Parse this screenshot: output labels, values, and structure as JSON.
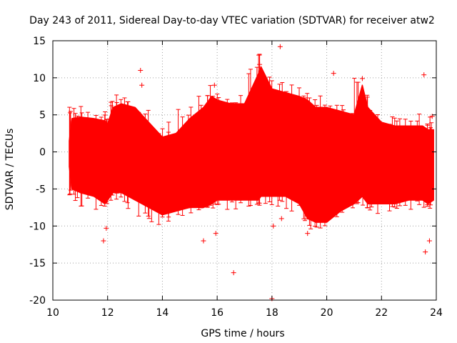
{
  "chart_data": {
    "type": "scatter",
    "title": "Day 243 of 2011, Sidereal Day-to-day VTEC variation (SDTVAR) for receiver atw2",
    "xlabel": "GPS time / hours",
    "ylabel": "SDTVAR / TECUs",
    "xlim": [
      10,
      24
    ],
    "ylim": [
      -20,
      15
    ],
    "xticks": [
      10,
      12,
      14,
      16,
      18,
      20,
      22,
      24
    ],
    "yticks": [
      -20,
      -15,
      -10,
      -5,
      0,
      5,
      10,
      15
    ],
    "grid": true,
    "color": "#ff0000",
    "series": [
      {
        "name": "SDTVAR",
        "marker": "+",
        "data_range_hours": [
          10.6,
          23.9
        ],
        "envelope": {
          "x": [
            10.6,
            10.7,
            11.0,
            11.5,
            11.9,
            12.0,
            12.2,
            12.5,
            13.0,
            13.5,
            14.0,
            14.5,
            15.0,
            15.5,
            15.8,
            16.0,
            16.5,
            17.0,
            17.5,
            17.6,
            18.0,
            18.5,
            19.0,
            19.3,
            19.6,
            20.0,
            20.5,
            21.0,
            21.3,
            21.5,
            22.0,
            22.5,
            23.0,
            23.5,
            23.7,
            23.9
          ],
          "upper": [
            1.5,
            4.5,
            4.7,
            4.5,
            4.2,
            3.8,
            6.0,
            6.5,
            6.0,
            4.0,
            2.0,
            2.5,
            4.5,
            6.0,
            7.5,
            7.0,
            6.5,
            6.5,
            10.5,
            11.5,
            8.5,
            8.0,
            7.5,
            7.0,
            6.0,
            6.0,
            5.5,
            5.0,
            9.0,
            6.0,
            4.0,
            3.5,
            3.5,
            3.5,
            3.0,
            3.0
          ],
          "lower": [
            -2.0,
            -5.0,
            -5.5,
            -6.0,
            -7.0,
            -6.5,
            -5.5,
            -5.5,
            -6.5,
            -7.5,
            -8.5,
            -8.0,
            -7.5,
            -7.5,
            -7.0,
            -6.5,
            -6.5,
            -6.5,
            -6.5,
            -6.0,
            -6.0,
            -6.0,
            -7.0,
            -9.0,
            -9.5,
            -9.5,
            -8.0,
            -7.0,
            -6.0,
            -7.0,
            -7.0,
            -7.0,
            -6.5,
            -6.5,
            -7.0,
            -6.5
          ]
        },
        "outliers": [
          {
            "x": 11.85,
            "y": -12.0
          },
          {
            "x": 11.95,
            "y": -10.3
          },
          {
            "x": 13.2,
            "y": 11.0
          },
          {
            "x": 13.25,
            "y": 9.0
          },
          {
            "x": 15.5,
            "y": -12.0
          },
          {
            "x": 15.9,
            "y": 9.0
          },
          {
            "x": 15.95,
            "y": -11.0
          },
          {
            "x": 16.6,
            "y": -16.3
          },
          {
            "x": 17.55,
            "y": 11.8
          },
          {
            "x": 18.0,
            "y": -19.8
          },
          {
            "x": 18.05,
            "y": -10.0
          },
          {
            "x": 18.3,
            "y": 14.2
          },
          {
            "x": 18.35,
            "y": -9.0
          },
          {
            "x": 19.3,
            "y": -11.0
          },
          {
            "x": 20.25,
            "y": 10.6
          },
          {
            "x": 21.3,
            "y": 9.9
          },
          {
            "x": 23.55,
            "y": 10.4
          },
          {
            "x": 23.6,
            "y": -13.5
          },
          {
            "x": 23.85,
            "y": 4.8
          },
          {
            "x": 23.75,
            "y": -12.0
          }
        ]
      }
    ]
  }
}
